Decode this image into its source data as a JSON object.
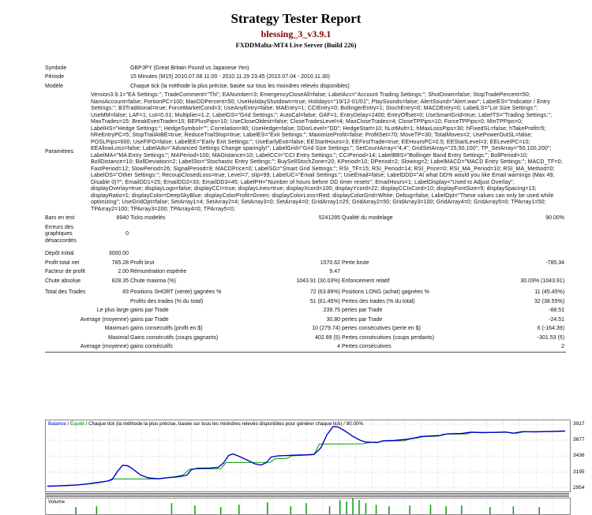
{
  "header": {
    "title": "Strategy Tester Report",
    "ea_name": "blessing_3_v3.9.1",
    "server": "FXDDMalta-MT4 Live Server (Build 226)"
  },
  "info": {
    "symbol_label": "Symbole",
    "symbol_value": "GBPJPY (Great Britain Pound vs Japanese Yen)",
    "period_label": "Période",
    "period_value": "15 Minutes (M15) 2010.07.08 11:00 - 2010.11.29 23:45 (2010.07.04 - 2010.11.30)",
    "model_label": "Modèle",
    "model_value": "Chaque tick (la méthode la plus précise, basée sur tous les moindres relevés disponibles)",
    "params_label": "Paramètres",
    "params_value": "Version3.9.1=\"EA Settings:\"; TradeComment=\"Thi\"; EANumber=3; EmergencyCloseAll=false; LabelAcc=\"Account Trading Settings:\"; ShutDown=false; StopTradePercent=50; NanoAccount=false; PortionPC=100; MaxDDPercent=50; UseHolidayShutdown=true; Holidays=\"19/12-01/01\"; PlaySounds=false; AlertSound=\"Alert.wav\"; LabelES=\"Indicator / Entry Settings:\"; B3Traditional=true; ForceMarketCond=3; UseAnyEntry=false; MAEntry=1; CCIEntry=0; BollingerEntry=1; StochEntry=0; MACDEntry=0; LabelLS=\"Lot Size Settings:\"; UseMM=false; LAF=1; Lot=0.01; Multiplier=1.2; LabelGS=\"Grid Settings:\"; AutoCal=false; GAF=1; EntryDelay=2400; EntryOffset=0; UseSmartGrid=true; LabelTS=\"Trading Settings:\"; MaxTrades=15; BreakEvenTrade=15; BEPlusPips=10; UseCloseOldest=false; CloseTradesLevel=4; MaxCloseTrades=4; CloseTPPips=10; ForceTPPips=0; MinTPPips=0; LabelHS=\"Hedge Settings:\"; HedgeSymbol=\"\"; Correlation=80; UseHedge=false; DDorLevel=\"DD\"; HedgeStart=10; hLotMult=1; hMaxLossPips=30; hFixedSL=false; hTakeProfit=5; hReEntryPC=5; StopTrailAtBE=true; ReduceTrailStop=true; LabelES=\"Exit Settings:\"; MaximizeProfit=false; ProfitSet=70; MoveTP=30; TotalMoves=2; UsePowerOutSL=false; POSLPips=600; UseFIFO=false; LabelEE=\"Early Exit Settings:\"; UseEarlyExit=false; EEStartHours=3; EEFirstTrade=true; EEHoursPC=0.5; EEStartLevel=3; EELevelPC=10; EEAllowLoss=false; LabelAdv=\"Advanced Settings Change sparingly!\"; LabelGrid=\"Grid Size Settings:\"; SetCountArray=\"4,4\"; GridSetArray=\"25,50,100\"; TP_SetArray=\"50,100,200\"; LabelMA=\"MA Entry Settings:\"; MAPeriod=100; MADistance=10; LabelCCI=\"CCI Entry Settings:\"; CCIPeriod=14; LabelBBS=\"Bollinger Band Entry Settings:\"; BollPeriod=10; BollDistance=10; BollDeviation=2; LabelSto=\"Stochastic Entry Settings:\"; BuySellStochZone=20; KPeriod=10; DPeriod=2; Slowing=2; LabelMACD=\"MACD Entry Settings:\"; MACD_TF=0; FastPeriod=12; SlowPeriod=26; SignalPeriod=9; MACDPrice=0; LabelSG=\"Smart Grid Settings:\"; RSI_TF=15; RSI_Period=14; RSI_Price=0; RSI_MA_Period=10; RSI_MA_Method=0; LabelOS=\"Other Settings:\"; RecoupClosedLoss=true; Level=7; slip=99; LabelUC=\"Email Settings:\"; UseEmail=false; LabelDDD=\"At what DD% would you like Email warnings (Max 49, Disable 0)?\"; EmailDD1=25; EmailDD2=33; EmailDD3=45; LabelPH=\"Number of hours before DD timer resets\"; EmailHours=1; LabelDisplay=\"Used to Adjust Overlay\"; displayOverlay=true; displayLogo=false; displayCCI=true; displayLines=true; displayXcord=100; displayYcord=22; displayCCIxCord=10; displayFontSize=9; displaySpacing=13; displayRatio=1; displayColor=DeepSkyBlue; displayColorProfit=Green; displayColorLoss=Red; displayColorGrid=White; Debug=false; LabelOpt=\"These values can only be used while optimizing\"; UseGridOpt=false; SetArray1=4; SetArray2=4; SetArray3=0; SetArray4=0; GridArray1=25; GridArray2=50; GridArray3=100; GridArray4=0; GridArray5=0; TPArray1=50; TPArray2=100; TPArray3=200; TPArray4=0; TPArray5=0;"
  },
  "stats": [
    {
      "l1": "Bars en test",
      "v1": "8940",
      "l2": "Ticks modelés",
      "v2": "5241285",
      "l3": "Qualité du modelage",
      "v3": "90.00%"
    },
    {
      "l1": "Erreurs des graphiques désaccordés",
      "v1": "0"
    },
    {
      "l1": "Dépôt initial",
      "v1": "3000.00"
    },
    {
      "l1": "Profit total net",
      "v1": "785.28",
      "l2": "Profit brut",
      "v2": "1570.62",
      "l3": "Perte brute",
      "v3": "-785.34"
    },
    {
      "l1": "Facteur de profit",
      "v1": "2.00",
      "l2": "Rémunération espérée",
      "v2": "9.47"
    },
    {
      "l1": "Chute absolue",
      "v1": "828.35",
      "l2": "Chute maxima (%)",
      "v2": "1043.91 (30.03%)",
      "l3": "Enfoncement relatif",
      "v3": "30.03% (1043.91)"
    },
    {
      "l1": "Total des Trades",
      "v1": "83",
      "l2": "Positions SHORT (vente) gagnées %",
      "v2": "72 (63.89%)",
      "l3": "Positions LONG (achat) gagnées %",
      "v3": "11 (45.45%)"
    },
    {
      "l2": "Profits des trades (% du total)",
      "v2": "51 (61.45%)",
      "l3": "Pertes des trades (% du total)",
      "v3": "32 (38.55%)"
    },
    {
      "g": "Le plus large",
      "l2": "gains par Trade",
      "v2": "239.75",
      "l3": "pertes par Trade",
      "v3": "-88.51"
    },
    {
      "g": "Average (moyenne)",
      "l2": "gains par Trade",
      "v2": "30.80",
      "l3": "pertes par Trade",
      "v3": "-24.51"
    },
    {
      "g": "Maximum",
      "l2": "gains consécutifs (profit en $)",
      "v2": "10 (279.74)",
      "l3": "pertes consécutives (perte en $)",
      "v3": "6 (-164.39)"
    },
    {
      "g": "Maximal",
      "l2": "Gains consécutifs (coups gagnants)",
      "v2": "402.89 (5)",
      "l3": "Pertes consécutives (coups perdants)",
      "v3": "-301.53 (5)"
    },
    {
      "g": "Average (moyenne)",
      "l2": "gains consécutifs",
      "v2": "4",
      "l3": "Pertes consécutives",
      "v3": "2"
    }
  ],
  "chart_data": {
    "type": "line",
    "title": "Balance / Équité",
    "caption": {
      "balance": "Balance",
      "sep1": " / ",
      "equity": "Équité",
      "rest": " / Chaque tick (la méthode la plus précise, basée sur tous les moindres relevés disponibles pour générer chaque tick) / 90.00%"
    },
    "legend_position": "top-left",
    "grid": true,
    "y_axis": {
      "max": 3917,
      "min": 2954,
      "ticks": [
        3917,
        3677,
        3436,
        3195,
        2954
      ]
    },
    "colors": {
      "balance_text": "#0000c8",
      "equity_text": "#008000",
      "grid": "#d4d4d4"
    },
    "series": [
      {
        "name": "balance",
        "color": "#009900",
        "width": 1,
        "points": [
          [
            0,
            2980
          ],
          [
            0.04,
            2990
          ],
          [
            0.08,
            3012
          ],
          [
            0.1,
            3035
          ],
          [
            0.115,
            3055
          ],
          [
            0.125,
            3090
          ],
          [
            0.21,
            3090
          ],
          [
            0.225,
            3105
          ],
          [
            0.245,
            3122
          ],
          [
            0.262,
            3150
          ],
          [
            0.275,
            3240
          ],
          [
            0.335,
            3245
          ],
          [
            0.345,
            3340
          ],
          [
            0.43,
            3342
          ],
          [
            0.44,
            3395
          ],
          [
            0.462,
            3400
          ],
          [
            0.472,
            3440
          ],
          [
            0.5,
            3450
          ],
          [
            0.515,
            3458
          ],
          [
            0.525,
            3618
          ],
          [
            0.61,
            3620
          ],
          [
            0.625,
            3645
          ],
          [
            0.64,
            3648
          ],
          [
            0.65,
            3665
          ],
          [
            0.69,
            3668
          ],
          [
            0.7,
            3695
          ],
          [
            0.715,
            3712
          ],
          [
            0.725,
            3730
          ],
          [
            0.755,
            3738
          ],
          [
            0.765,
            3768
          ],
          [
            0.81,
            3770
          ],
          [
            0.82,
            3795
          ],
          [
            0.86,
            3792
          ],
          [
            0.89,
            3798
          ],
          [
            0.905,
            3780
          ],
          [
            0.92,
            3804
          ],
          [
            1.0,
            3813
          ]
        ]
      },
      {
        "name": "equity",
        "color": "#0000c8",
        "width": 1.4,
        "points": [
          [
            0,
            2980
          ],
          [
            0.02,
            2985
          ],
          [
            0.04,
            2992
          ],
          [
            0.06,
            3000
          ],
          [
            0.08,
            3018
          ],
          [
            0.1,
            3040
          ],
          [
            0.115,
            3055
          ],
          [
            0.125,
            3080
          ],
          [
            0.135,
            3200
          ],
          [
            0.145,
            3295
          ],
          [
            0.155,
            3290
          ],
          [
            0.165,
            3240
          ],
          [
            0.18,
            3150
          ],
          [
            0.195,
            3105
          ],
          [
            0.215,
            3092
          ],
          [
            0.235,
            3110
          ],
          [
            0.255,
            3125
          ],
          [
            0.27,
            3150
          ],
          [
            0.278,
            3230
          ],
          [
            0.29,
            3252
          ],
          [
            0.315,
            3255
          ],
          [
            0.33,
            3265
          ],
          [
            0.34,
            3330
          ],
          [
            0.35,
            3445
          ],
          [
            0.358,
            3470
          ],
          [
            0.368,
            3440
          ],
          [
            0.385,
            3380
          ],
          [
            0.4,
            3320
          ],
          [
            0.413,
            3300
          ],
          [
            0.423,
            3340
          ],
          [
            0.432,
            3420
          ],
          [
            0.445,
            3438
          ],
          [
            0.47,
            3448
          ],
          [
            0.5,
            3455
          ],
          [
            0.515,
            3462
          ],
          [
            0.528,
            3560
          ],
          [
            0.54,
            3760
          ],
          [
            0.552,
            3885
          ],
          [
            0.562,
            3875
          ],
          [
            0.575,
            3815
          ],
          [
            0.59,
            3735
          ],
          [
            0.605,
            3672
          ],
          [
            0.615,
            3648
          ],
          [
            0.638,
            3642
          ],
          [
            0.648,
            3668
          ],
          [
            0.67,
            3672
          ],
          [
            0.695,
            3690
          ],
          [
            0.71,
            3712
          ],
          [
            0.722,
            3732
          ],
          [
            0.74,
            3740
          ],
          [
            0.758,
            3748
          ],
          [
            0.772,
            3772
          ],
          [
            0.8,
            3778
          ],
          [
            0.818,
            3798
          ],
          [
            0.84,
            3792
          ],
          [
            0.865,
            3795
          ],
          [
            0.885,
            3800
          ],
          [
            0.9,
            3782
          ],
          [
            0.917,
            3806
          ],
          [
            0.94,
            3802
          ],
          [
            0.96,
            3806
          ],
          [
            0.98,
            3810
          ],
          [
            1.0,
            3815
          ]
        ]
      }
    ],
    "volume": {
      "label": "Volume",
      "color": "#00a000",
      "bars": [
        [
          0.055,
          3
        ],
        [
          0.095,
          4
        ],
        [
          0.24,
          8
        ],
        [
          0.285,
          5
        ],
        [
          0.335,
          3
        ],
        [
          0.37,
          6
        ],
        [
          0.425,
          9
        ],
        [
          0.47,
          4
        ],
        [
          0.5,
          8
        ],
        [
          0.545,
          4
        ],
        [
          0.565,
          12
        ],
        [
          0.578,
          10
        ],
        [
          0.59,
          16
        ],
        [
          0.602,
          12
        ],
        [
          0.615,
          8
        ],
        [
          0.635,
          6
        ],
        [
          0.66,
          4
        ],
        [
          0.7,
          5
        ],
        [
          0.74,
          6
        ],
        [
          0.77,
          4
        ],
        [
          0.8,
          5
        ],
        [
          0.855,
          3
        ],
        [
          0.9,
          4
        ],
        [
          0.95,
          3
        ]
      ]
    }
  }
}
